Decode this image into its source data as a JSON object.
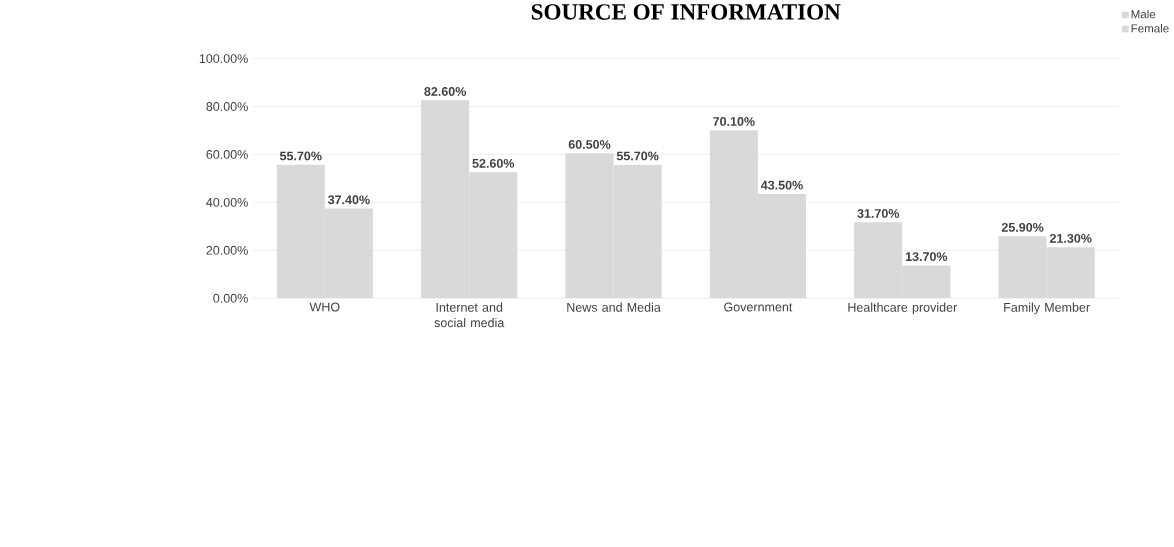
{
  "chart_data": {
    "type": "bar",
    "title": "SOURCE OF INFORMATION",
    "categories": [
      "WHO",
      "Internet and social media",
      "News and Media",
      "Government",
      "Healthcare provider",
      "Family Member"
    ],
    "series": [
      {
        "name": "Male",
        "color": "#d9d9d9",
        "values": [
          55.7,
          82.6,
          60.5,
          70.1,
          31.7,
          25.9
        ],
        "value_labels": [
          "55.70%",
          "82.60%",
          "60.50%",
          "70.10%",
          "31.70%",
          "25.90%"
        ]
      },
      {
        "name": "Female",
        "color": "#d9d9d9",
        "values": [
          37.4,
          52.6,
          55.7,
          43.5,
          13.7,
          21.3
        ],
        "value_labels": [
          "37.40%",
          "52.60%",
          "55.70%",
          "43.50%",
          "13.70%",
          "21.30%"
        ]
      }
    ],
    "ylim": [
      0,
      100
    ],
    "yticks": [
      {
        "value": 0,
        "label": "0.00%"
      },
      {
        "value": 20,
        "label": "20.00%"
      },
      {
        "value": 40,
        "label": "40.00%"
      },
      {
        "value": 60,
        "label": "60.00%"
      },
      {
        "value": 80,
        "label": "80.00%"
      },
      {
        "value": 100,
        "label": "100.00%"
      }
    ],
    "grid": "y",
    "legend": "top right"
  }
}
